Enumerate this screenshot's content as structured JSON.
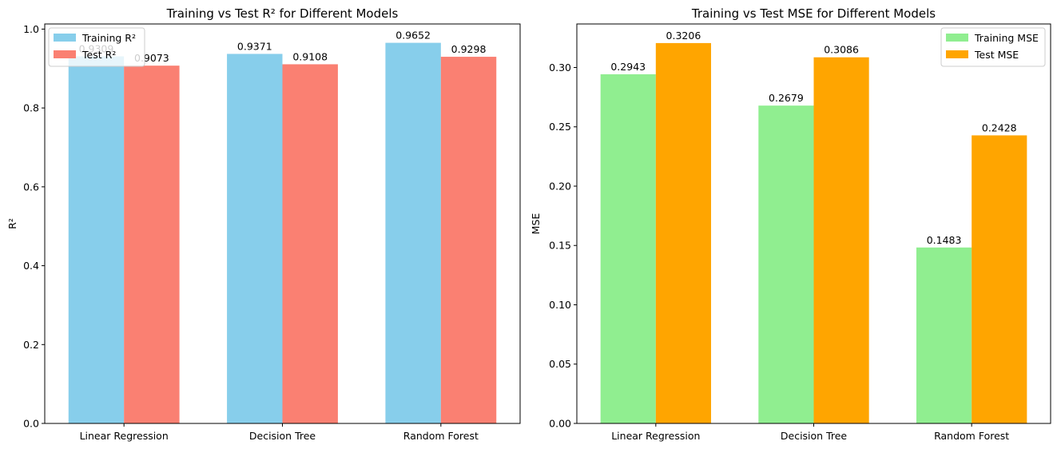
{
  "chart_data": [
    {
      "type": "bar",
      "title": "Training vs Test R² for Different Models",
      "xlabel": "",
      "ylabel": "R²",
      "categories": [
        "Linear Regression",
        "Decision Tree",
        "Random Forest"
      ],
      "series": [
        {
          "name": "Training R²",
          "values": [
            0.9309,
            0.9371,
            0.9652
          ],
          "labels": [
            "0.9309",
            "0.9371",
            "0.9652"
          ],
          "color": "#87ceeb"
        },
        {
          "name": "Test R²",
          "values": [
            0.9073,
            0.9108,
            0.9298
          ],
          "labels": [
            "0.9073",
            "0.9108",
            "0.9298"
          ],
          "color": "#fa8072"
        }
      ],
      "ylim": [
        0,
        1.013
      ],
      "yticks": [
        0.0,
        0.2,
        0.4,
        0.6,
        0.8,
        1.0
      ],
      "ytick_labels": [
        "0.0",
        "0.2",
        "0.4",
        "0.6",
        "0.8",
        "1.0"
      ],
      "grid": false,
      "legend_position": "upper left"
    },
    {
      "type": "bar",
      "title": "Training vs Test MSE for Different Models",
      "xlabel": "",
      "ylabel": "MSE",
      "categories": [
        "Linear Regression",
        "Decision Tree",
        "Random Forest"
      ],
      "series": [
        {
          "name": "Training MSE",
          "values": [
            0.2943,
            0.2679,
            0.1483
          ],
          "labels": [
            "0.2943",
            "0.2679",
            "0.1483"
          ],
          "color": "#90ee90"
        },
        {
          "name": "Test MSE",
          "values": [
            0.3206,
            0.3086,
            0.2428
          ],
          "labels": [
            "0.3206",
            "0.3086",
            "0.2428"
          ],
          "color": "#ffa500"
        }
      ],
      "ylim": [
        0,
        0.3367
      ],
      "yticks": [
        0.0,
        0.05,
        0.1,
        0.15,
        0.2,
        0.25,
        0.3
      ],
      "ytick_labels": [
        "0.00",
        "0.05",
        "0.10",
        "0.15",
        "0.20",
        "0.25",
        "0.30"
      ],
      "grid": false,
      "legend_position": "upper right"
    }
  ]
}
